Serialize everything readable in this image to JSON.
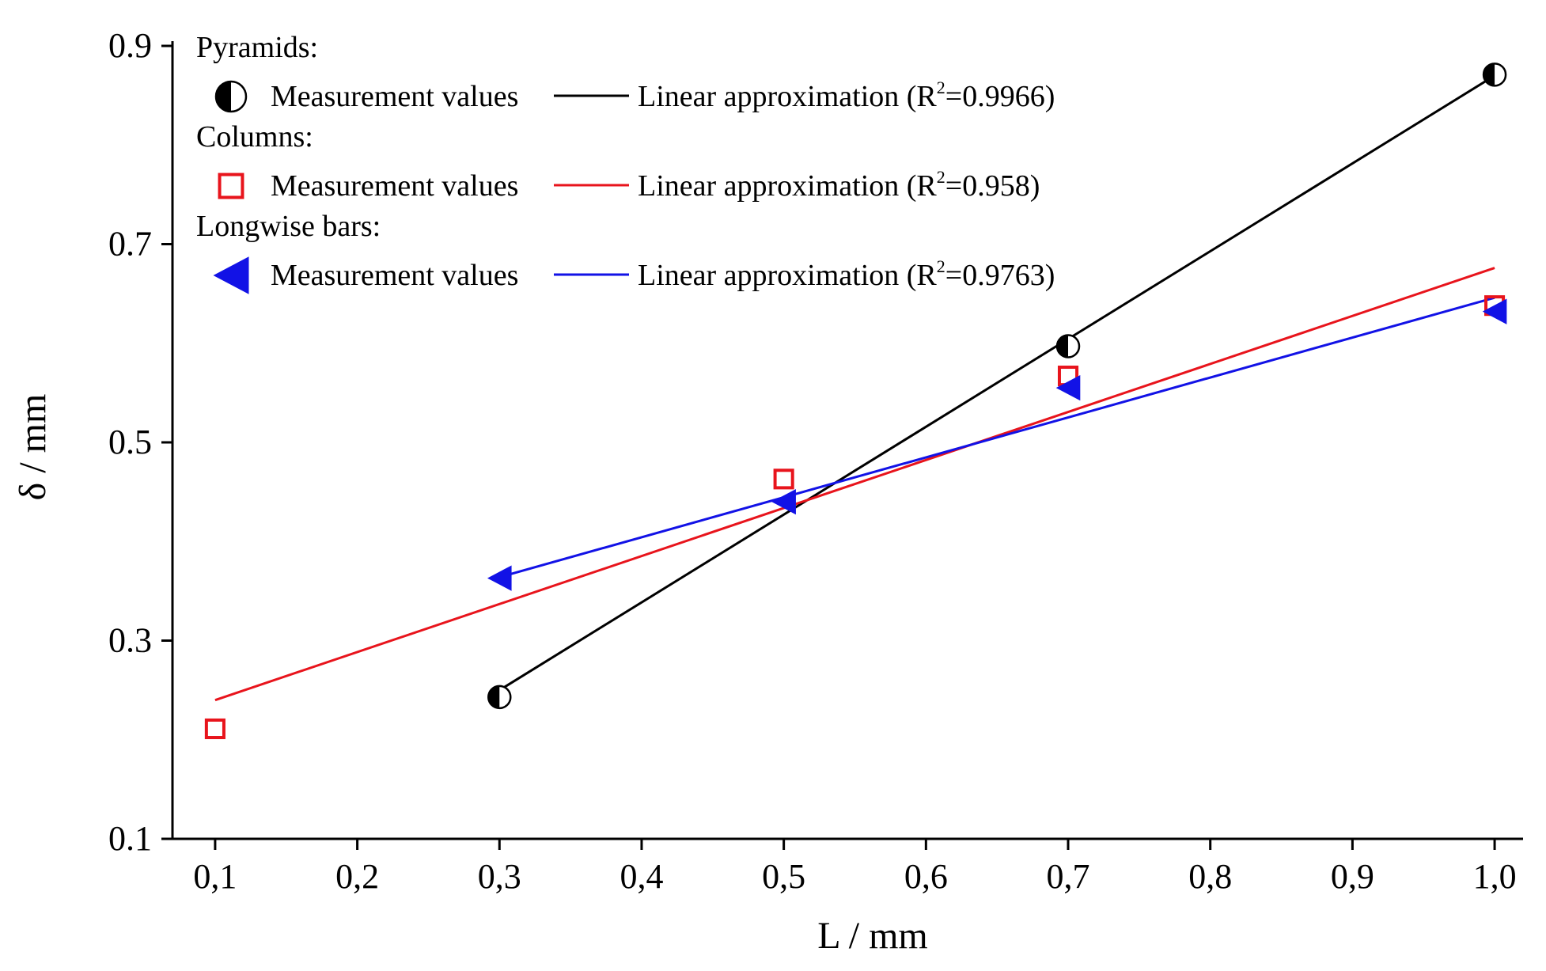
{
  "chart_data": {
    "type": "scatter",
    "title": "",
    "xlabel": "L / mm",
    "ylabel": "δ / mm",
    "xlim": [
      0.07,
      1.02
    ],
    "ylim": [
      0.1,
      0.9
    ],
    "xticks": [
      0.1,
      0.2,
      0.3,
      0.4,
      0.5,
      0.6,
      0.7,
      0.8,
      0.9,
      1.0
    ],
    "yticks": [
      0.1,
      0.3,
      0.5,
      0.7,
      0.9
    ],
    "xtick_labels": [
      "0,1",
      "0,2",
      "0,3",
      "0,4",
      "0,5",
      "0,6",
      "0,7",
      "0,8",
      "0,9",
      "1,0"
    ],
    "ytick_labels": [
      "0.1",
      "0.3",
      "0.5",
      "0.7",
      "0.9"
    ],
    "legend_position": "top-left",
    "groups": [
      {
        "group_title": "Pyramids:",
        "color": "#000000",
        "marker": "half-filled-circle",
        "measurement_label": "Measurement values",
        "fit_label": "Linear approximation (R",
        "fit_r2_value": "=0.9966)",
        "superscript": "2",
        "points": [
          {
            "x": 0.3,
            "y": 0.243
          },
          {
            "x": 0.7,
            "y": 0.597
          },
          {
            "x": 1.0,
            "y": 0.871
          }
        ],
        "fit": {
          "x": [
            0.3,
            1.0
          ],
          "y": [
            0.25,
            0.87
          ]
        }
      },
      {
        "group_title": "Columns:",
        "color": "#e8141c",
        "marker": "open-square",
        "measurement_label": "Measurement values",
        "fit_label": "Linear approximation (R",
        "fit_r2_value": "=0.958)",
        "superscript": "2",
        "points": [
          {
            "x": 0.1,
            "y": 0.211
          },
          {
            "x": 0.5,
            "y": 0.463
          },
          {
            "x": 0.7,
            "y": 0.567
          },
          {
            "x": 1.0,
            "y": 0.638
          }
        ],
        "fit": {
          "x": [
            0.1,
            1.0
          ],
          "y": [
            0.24,
            0.676
          ]
        }
      },
      {
        "group_title": "Longwise bars:",
        "color": "#1212e6",
        "marker": "left-triangle",
        "measurement_label": "Measurement values",
        "fit_label": "Linear approximation (R",
        "fit_r2_value": "=0.9763)",
        "superscript": "2",
        "points": [
          {
            "x": 0.3,
            "y": 0.363
          },
          {
            "x": 0.5,
            "y": 0.44
          },
          {
            "x": 0.7,
            "y": 0.555
          },
          {
            "x": 1.0,
            "y": 0.632
          }
        ],
        "fit": {
          "x": [
            0.3,
            1.0
          ],
          "y": [
            0.364,
            0.646
          ]
        }
      }
    ]
  }
}
